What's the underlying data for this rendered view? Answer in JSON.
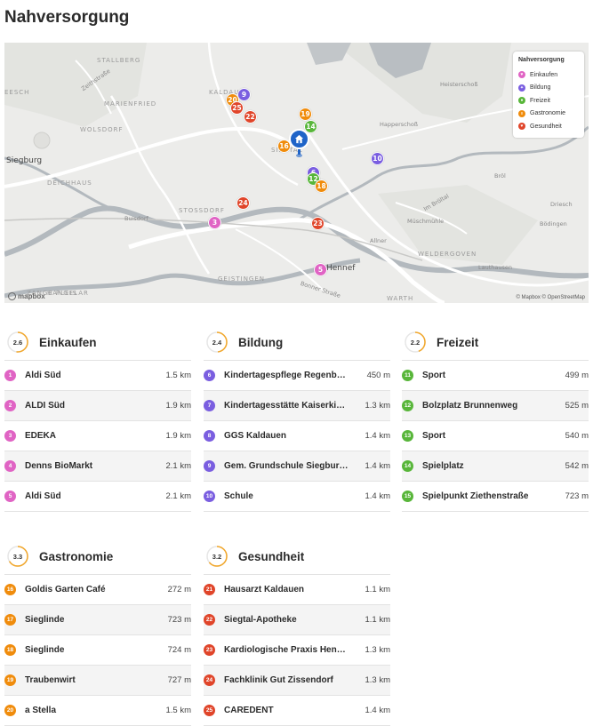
{
  "page": {
    "title": "Nahversorgung"
  },
  "colors": {
    "einkaufen": "#e064c4",
    "bildung": "#7a5ee0",
    "freizeit": "#58b63a",
    "gastronomie": "#f08c0c",
    "gesundheit": "#e0452a",
    "home": "#1f64c8"
  },
  "map": {
    "labels": [
      "STALLBERG",
      "EESCH",
      "MARIENFRIED",
      "WOLSDORF",
      "Siegburg",
      "DEICHHAUS",
      "Buisdorf",
      "STOSSDORF",
      "GEISTINGEN",
      "KALDAUEN",
      "SIEGTAL",
      "Happerschoß",
      "Heisterschoß",
      "Bröl",
      "Driesch",
      "Bödingen",
      "Müschmühle",
      "Allner",
      "WELDERGOVEN",
      "Lauthausen",
      "WARTH",
      "Hennef",
      "HANGELAR",
      "Zeithstraße",
      "Bonner Straße",
      "Im Bröltal",
      "ZANGE PLEIS"
    ],
    "legend": {
      "title": "Nahversorgung",
      "items": [
        "Einkaufen",
        "Bildung",
        "Freizeit",
        "Gastronomie",
        "Gesundheit"
      ]
    },
    "markers": [
      "9",
      "20",
      "25",
      "22",
      "19",
      "14",
      "16",
      "10",
      "6",
      "12",
      "18",
      "24",
      "3",
      "23",
      "5"
    ],
    "mapbox_logo": "mapbox",
    "attribution": "© Mapbox © OpenStreetMap"
  },
  "categories": [
    {
      "title": "Einkaufen",
      "score": "2.6",
      "score_value": 2.6,
      "color_key": "einkaufen",
      "items": [
        {
          "num": "1",
          "name": "Aldi Süd",
          "dist": "1.5 km"
        },
        {
          "num": "2",
          "name": "ALDI Süd",
          "dist": "1.9 km"
        },
        {
          "num": "3",
          "name": "EDEKA",
          "dist": "1.9 km"
        },
        {
          "num": "4",
          "name": "Denns BioMarkt",
          "dist": "2.1 km"
        },
        {
          "num": "5",
          "name": "Aldi Süd",
          "dist": "2.1 km"
        }
      ]
    },
    {
      "title": "Bildung",
      "score": "2.4",
      "score_value": 2.4,
      "color_key": "bildung",
      "items": [
        {
          "num": "6",
          "name": "Kindertagespflege Regenbogen",
          "dist": "450 m"
        },
        {
          "num": "7",
          "name": "Kindertagesstätte Kaiserkinder",
          "dist": "1.3 km"
        },
        {
          "num": "8",
          "name": "GGS Kaldauen",
          "dist": "1.4 km"
        },
        {
          "num": "9",
          "name": "Gem. Grundschule Siegburg-Kaldauen",
          "dist": "1.4 km"
        },
        {
          "num": "10",
          "name": "Schule",
          "dist": "1.4 km"
        }
      ]
    },
    {
      "title": "Freizeit",
      "score": "2.2",
      "score_value": 2.2,
      "color_key": "freizeit",
      "items": [
        {
          "num": "11",
          "name": "Sport",
          "dist": "499 m"
        },
        {
          "num": "12",
          "name": "Bolzplatz Brunnenweg",
          "dist": "525 m"
        },
        {
          "num": "13",
          "name": "Sport",
          "dist": "540 m"
        },
        {
          "num": "14",
          "name": "Spielplatz",
          "dist": "542 m"
        },
        {
          "num": "15",
          "name": "Spielpunkt Ziethenstraße",
          "dist": "723 m"
        }
      ]
    },
    {
      "title": "Gastronomie",
      "score": "3.3",
      "score_value": 3.3,
      "color_key": "gastronomie",
      "items": [
        {
          "num": "16",
          "name": "Goldis Garten Café",
          "dist": "272 m"
        },
        {
          "num": "17",
          "name": "Sieglinde",
          "dist": "723 m"
        },
        {
          "num": "18",
          "name": "Sieglinde",
          "dist": "724 m"
        },
        {
          "num": "19",
          "name": "Traubenwirt",
          "dist": "727 m"
        },
        {
          "num": "20",
          "name": "a Stella",
          "dist": "1.5 km"
        }
      ]
    },
    {
      "title": "Gesundheit",
      "score": "3.2",
      "score_value": 3.2,
      "color_key": "gesundheit",
      "items": [
        {
          "num": "21",
          "name": "Hausarzt Kaldauen",
          "dist": "1.1 km"
        },
        {
          "num": "22",
          "name": "Siegtal-Apotheke",
          "dist": "1.1 km"
        },
        {
          "num": "23",
          "name": "Kardiologische Praxis Hennef",
          "dist": "1.3 km"
        },
        {
          "num": "24",
          "name": "Fachklinik Gut Zissendorf",
          "dist": "1.3 km"
        },
        {
          "num": "25",
          "name": "CAREDENT",
          "dist": "1.4 km"
        }
      ]
    }
  ]
}
